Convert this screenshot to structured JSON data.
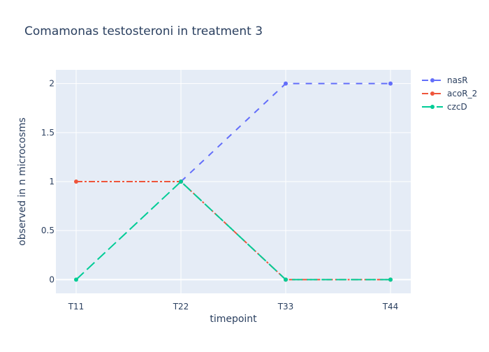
{
  "chart_data": {
    "type": "line",
    "title": "Comamonas testosteroni in treatment 3",
    "xlabel": "timepoint",
    "ylabel": "observed in n microcosms",
    "categories": [
      "T11",
      "T22",
      "T33",
      "T44"
    ],
    "ylim": [
      -0.14,
      2.14
    ],
    "yticks": [
      0,
      0.5,
      1,
      1.5,
      2
    ],
    "ytick_labels": [
      "0",
      "0.5",
      "1",
      "1.5",
      "2"
    ],
    "grid": true,
    "legend_position": "top-right",
    "series": [
      {
        "name": "nasR",
        "values": [
          null,
          1,
          2,
          2
        ],
        "color": "#636efa",
        "dash": "dash"
      },
      {
        "name": "acoR_2",
        "values": [
          1,
          1,
          0,
          0
        ],
        "color": "#ef553b",
        "dash": "dashdot"
      },
      {
        "name": "czcD",
        "values": [
          0,
          1,
          0,
          0
        ],
        "color": "#00cc96",
        "dash": "longdash"
      }
    ]
  }
}
